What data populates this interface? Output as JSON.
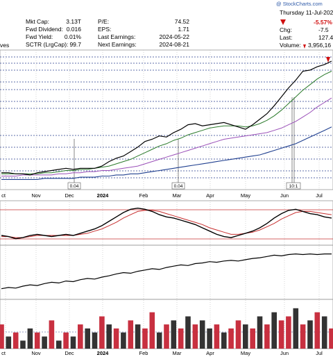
{
  "header": {
    "watermark": "@ StockCharts.com",
    "date": "Thursday  11-Jul-202",
    "left_fragment": "ves",
    "stats_col1": [
      {
        "label": "Mkt Cap:",
        "value": "3.13T"
      },
      {
        "label": "Fwd Dividend:",
        "value": "0.016"
      },
      {
        "label": "Fwd Yield:",
        "value": "0.01%"
      },
      {
        "label": "SCTR (LrgCap):",
        "value": "99.7"
      }
    ],
    "stats_col2": [
      {
        "label": "P/E:",
        "value": "74.52"
      },
      {
        "label": "EPS:",
        "value": "1.71"
      },
      {
        "label": "Last Earnings:",
        "value": "2024-05-22"
      },
      {
        "label": "Next Earnings:",
        "value": "2024-08-21"
      }
    ],
    "pct_change": "-5.57%",
    "chg_label": "Chg:",
    "chg_value": "-7.5",
    "last_label": "Last:",
    "last_value": "127.4",
    "volume_label": "Volume:",
    "volume_value": "3,956,16",
    "down_color": "#d01010"
  },
  "chart_data": {
    "type": "line",
    "x_tick_labels": [
      "ct",
      "Nov",
      "Dec",
      "2024",
      "Feb",
      "Mar",
      "Apr",
      "May",
      "Jun",
      "Jul"
    ],
    "bold_tick": "2024",
    "annotations": [
      "0.04",
      "0.04",
      "10:1"
    ],
    "price_series": [
      {
        "name": "price",
        "color": "#000000",
        "values": [
          27,
          27,
          26,
          26,
          25,
          27,
          28,
          29,
          30,
          31,
          30,
          31,
          31,
          31,
          33,
          37,
          40,
          42,
          46,
          50,
          55,
          57,
          60,
          59,
          63,
          66,
          70,
          71,
          69,
          70,
          71,
          72,
          70,
          68,
          66,
          70,
          75,
          80,
          87,
          95,
          103,
          110,
          118,
          119,
          122,
          124,
          127
        ]
      },
      {
        "name": "sma50",
        "color": "#2a7a2a",
        "values": [
          26,
          26,
          26,
          26,
          26,
          26,
          27,
          27,
          28,
          29,
          29,
          30,
          30,
          31,
          32,
          33,
          35,
          37,
          39,
          42,
          45,
          48,
          51,
          53,
          56,
          58,
          61,
          63,
          65,
          67,
          68,
          69,
          69,
          69,
          68,
          69,
          71,
          74,
          78,
          83,
          89,
          95,
          101,
          106,
          111,
          115,
          118
        ]
      },
      {
        "name": "sma100",
        "color": "#9a4fb8",
        "values": [
          24,
          24,
          24,
          25,
          25,
          25,
          25,
          25,
          26,
          26,
          27,
          27,
          28,
          28,
          29,
          29,
          30,
          31,
          32,
          33,
          35,
          37,
          39,
          41,
          43,
          45,
          47,
          49,
          51,
          53,
          55,
          57,
          58,
          59,
          60,
          61,
          62,
          63,
          65,
          67,
          70,
          73,
          77,
          81,
          86,
          90,
          94
        ]
      },
      {
        "name": "sma200",
        "color": "#1f3f8f",
        "values": [
          21,
          21,
          21,
          21,
          21,
          21,
          22,
          22,
          22,
          22,
          22,
          23,
          23,
          23,
          24,
          24,
          25,
          25,
          26,
          26,
          27,
          28,
          29,
          30,
          31,
          32,
          33,
          34,
          35,
          36,
          37,
          38,
          39,
          40,
          41,
          42,
          43,
          45,
          47,
          49,
          51,
          53,
          56,
          59,
          62,
          65,
          68
        ]
      }
    ],
    "oscillator_series": [
      {
        "name": "fast",
        "color": "#000000",
        "values": [
          0.2,
          0.1,
          -0.1,
          0,
          0.2,
          0.3,
          0.2,
          0.1,
          0.2,
          0.3,
          0.2,
          0.4,
          0.6,
          0.8,
          1.1,
          1.5,
          1.9,
          2.3,
          2.6,
          2.7,
          2.6,
          2.4,
          2.1,
          1.9,
          1.8,
          1.6,
          1.4,
          1.2,
          0.9,
          0.6,
          0.3,
          0.1,
          0,
          0.2,
          0.4,
          0.6,
          0.9,
          1.3,
          1.8,
          2.2,
          2.5,
          2.6,
          2.4,
          2.2,
          2.1,
          1.9,
          1.8
        ]
      },
      {
        "name": "slow",
        "color": "#c83030",
        "values": [
          0.1,
          0.1,
          0,
          0,
          0.1,
          0.2,
          0.2,
          0.2,
          0.2,
          0.2,
          0.2,
          0.3,
          0.4,
          0.6,
          0.8,
          1.1,
          1.4,
          1.8,
          2.1,
          2.4,
          2.5,
          2.5,
          2.4,
          2.2,
          2.0,
          1.8,
          1.6,
          1.4,
          1.2,
          0.9,
          0.7,
          0.5,
          0.3,
          0.3,
          0.4,
          0.5,
          0.7,
          1.0,
          1.3,
          1.7,
          2.0,
          2.3,
          2.4,
          2.4,
          2.3,
          2.2,
          2.1
        ]
      }
    ],
    "cumulative_series": [
      {
        "name": "cumulative",
        "color": "#000000",
        "values": [
          10,
          12,
          11,
          14,
          16,
          15,
          18,
          20,
          19,
          22,
          21,
          24,
          26,
          25,
          28,
          30,
          33,
          35,
          34,
          37,
          39,
          41,
          40,
          43,
          45,
          47,
          46,
          49,
          50,
          52,
          51,
          53,
          54,
          53,
          55,
          57,
          58,
          60,
          62,
          61,
          63,
          64,
          63,
          64,
          63,
          64,
          64
        ]
      }
    ],
    "volume": {
      "color_up": "#333333",
      "color_down": "#c83040",
      "values": [
        6,
        3,
        4,
        2,
        5,
        4,
        3,
        7,
        2,
        4,
        3,
        6,
        5,
        4,
        8,
        6,
        5,
        4,
        7,
        6,
        5,
        9,
        4,
        6,
        7,
        5,
        8,
        6,
        7,
        5,
        6,
        4,
        5,
        7,
        6,
        5,
        8,
        6,
        9,
        7,
        8,
        10,
        6,
        7,
        9,
        8,
        5
      ],
      "directions": [
        "d",
        "u",
        "d",
        "u",
        "u",
        "d",
        "u",
        "d",
        "u",
        "d",
        "u",
        "d",
        "u",
        "u",
        "d",
        "u",
        "d",
        "u",
        "d",
        "u",
        "d",
        "d",
        "u",
        "d",
        "u",
        "d",
        "u",
        "d",
        "u",
        "u",
        "d",
        "u",
        "d",
        "d",
        "u",
        "d",
        "u",
        "d",
        "u",
        "d",
        "d",
        "u",
        "d",
        "u",
        "d",
        "u",
        "d"
      ]
    }
  }
}
